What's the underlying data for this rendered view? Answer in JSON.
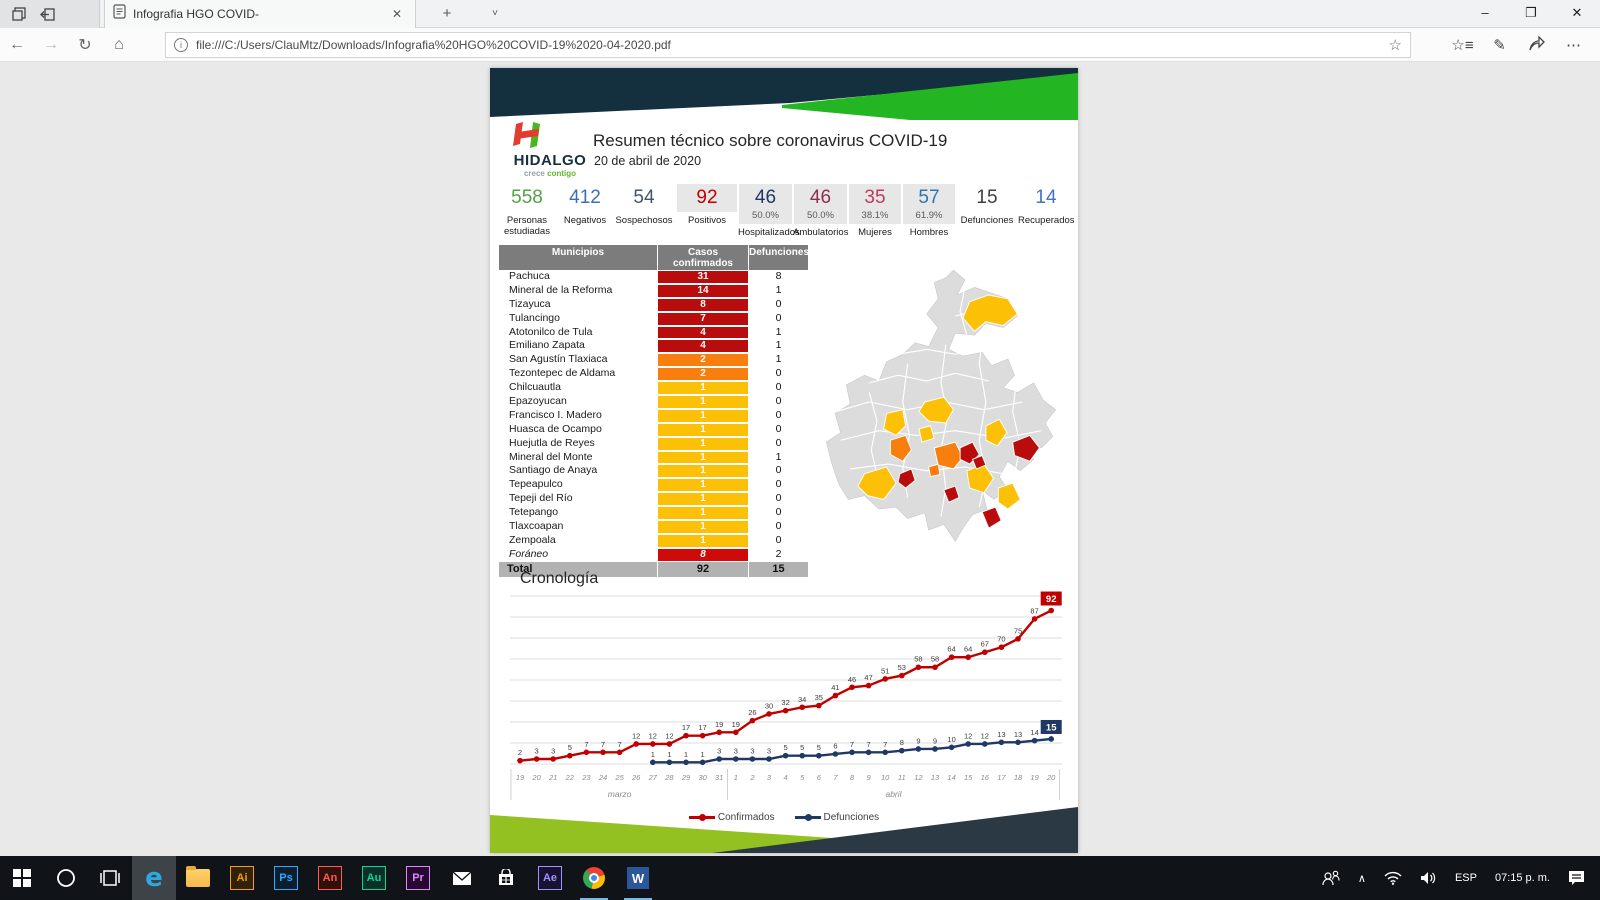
{
  "browser": {
    "tab_title": "Infografia HGO COVID-",
    "url": "file:///C:/Users/ClauMtz/Downloads/Infografia%20HGO%20COVID-19%2020-04-2020.pdf"
  },
  "header": {
    "logo_word": "HIDALGO",
    "logo_tag_1": "crece",
    "logo_tag_2": "contigo",
    "title": "Resumen técnico sobre coronavirus COVID-19",
    "date": "20 de abril de 2020"
  },
  "stats": [
    {
      "value": "558",
      "sub": "",
      "label": "Personas estudiadas",
      "color": "#53a045",
      "boxed": false
    },
    {
      "value": "412",
      "sub": "",
      "label": "Negativos",
      "color": "#3b6fb5",
      "boxed": false
    },
    {
      "value": "54",
      "sub": "",
      "label": "Sospechosos",
      "color": "#44546a",
      "boxed": false
    },
    {
      "value": "92",
      "sub": "",
      "label": "Positivos",
      "color": "#c00000",
      "boxed": true
    },
    {
      "value": "46",
      "sub": "50.0%",
      "label": "Hospitalizados",
      "color": "#1f3864",
      "boxed": true
    },
    {
      "value": "46",
      "sub": "50.0%",
      "label": "Ambulatorios",
      "color": "#8e2f4f",
      "boxed": true
    },
    {
      "value": "35",
      "sub": "38.1%",
      "label": "Mujeres",
      "color": "#bf3a5c",
      "boxed": true
    },
    {
      "value": "57",
      "sub": "61.9%",
      "label": "Hombres",
      "color": "#2e74b5",
      "boxed": true
    },
    {
      "value": "15",
      "sub": "",
      "label": "Defunciones",
      "color": "#404040",
      "boxed": false
    },
    {
      "value": "14",
      "sub": "",
      "label": "Recuperados",
      "color": "#4472c4",
      "boxed": false
    }
  ],
  "table": {
    "headers": [
      "Municipios",
      "Casos confirmados",
      "Defunciones"
    ],
    "rows": [
      {
        "name": "Pachuca",
        "cases": "31",
        "deaths": "8",
        "level": "darkred",
        "italic": false
      },
      {
        "name": "Mineral de la Reforma",
        "cases": "14",
        "deaths": "1",
        "level": "darkred",
        "italic": false
      },
      {
        "name": "Tizayuca",
        "cases": "8",
        "deaths": "0",
        "level": "darkred",
        "italic": false
      },
      {
        "name": "Tulancingo",
        "cases": "7",
        "deaths": "0",
        "level": "darkred",
        "italic": false
      },
      {
        "name": "Atotonilco de Tula",
        "cases": "4",
        "deaths": "1",
        "level": "darkred",
        "italic": false
      },
      {
        "name": "Emiliano Zapata",
        "cases": "4",
        "deaths": "1",
        "level": "darkred",
        "italic": false
      },
      {
        "name": "San Agustín Tlaxiaca",
        "cases": "2",
        "deaths": "1",
        "level": "orange",
        "italic": false
      },
      {
        "name": "Tezontepec de Aldama",
        "cases": "2",
        "deaths": "0",
        "level": "orange",
        "italic": false
      },
      {
        "name": "Chilcuautla",
        "cases": "1",
        "deaths": "0",
        "level": "yellow",
        "italic": false
      },
      {
        "name": "Epazoyucan",
        "cases": "1",
        "deaths": "0",
        "level": "yellow",
        "italic": false
      },
      {
        "name": "Francisco I. Madero",
        "cases": "1",
        "deaths": "0",
        "level": "yellow",
        "italic": false
      },
      {
        "name": "Huasca de Ocampo",
        "cases": "1",
        "deaths": "0",
        "level": "yellow",
        "italic": false
      },
      {
        "name": "Huejutla de Reyes",
        "cases": "1",
        "deaths": "0",
        "level": "yellow",
        "italic": false
      },
      {
        "name": "Mineral del Monte",
        "cases": "1",
        "deaths": "1",
        "level": "yellow",
        "italic": false
      },
      {
        "name": "Santiago de Anaya",
        "cases": "1",
        "deaths": "0",
        "level": "yellow",
        "italic": false
      },
      {
        "name": "Tepeapulco",
        "cases": "1",
        "deaths": "0",
        "level": "yellow",
        "italic": false
      },
      {
        "name": "Tepeji del Río",
        "cases": "1",
        "deaths": "0",
        "level": "yellow",
        "italic": false
      },
      {
        "name": "Tetepango",
        "cases": "1",
        "deaths": "0",
        "level": "yellow",
        "italic": false
      },
      {
        "name": "Tlaxcoapan",
        "cases": "1",
        "deaths": "0",
        "level": "yellow",
        "italic": false
      },
      {
        "name": "Zempoala",
        "cases": "1",
        "deaths": "0",
        "level": "yellow",
        "italic": false
      },
      {
        "name": "Foráneo",
        "cases": "8",
        "deaths": "2",
        "level": "foraneo",
        "italic": true
      }
    ],
    "total_label": "Total",
    "total_cases": "92",
    "total_deaths": "15",
    "level_colors": {
      "darkred": "#b90c0c",
      "orange": "#f87e0e",
      "yellow": "#fcc006",
      "foraneo": "#cf0a0a"
    }
  },
  "map": {
    "palette": {
      "none": "#dcdcdc",
      "low": "#fcc006",
      "mid": "#f87e0e",
      "high": "#b90c0c"
    }
  },
  "chart_data": {
    "type": "line",
    "title": "Cronología",
    "categories": [
      "19",
      "20",
      "21",
      "22",
      "23",
      "24",
      "25",
      "26",
      "27",
      "28",
      "29",
      "30",
      "31",
      "1",
      "2",
      "3",
      "4",
      "5",
      "6",
      "7",
      "8",
      "9",
      "10",
      "11",
      "12",
      "13",
      "14",
      "15",
      "16",
      "17",
      "18",
      "19",
      "20"
    ],
    "month_groups": [
      {
        "label": "marzo",
        "count": 13
      },
      {
        "label": "abril",
        "count": 20
      }
    ],
    "series": [
      {
        "name": "Confirmados",
        "color": "#c00000",
        "start_index": 0,
        "values": [
          2,
          3,
          3,
          5,
          7,
          7,
          7,
          12,
          12,
          12,
          17,
          17,
          19,
          19,
          26,
          30,
          32,
          34,
          35,
          41,
          46,
          47,
          51,
          53,
          58,
          58,
          64,
          64,
          67,
          70,
          75,
          87,
          92
        ]
      },
      {
        "name": "Defunciones",
        "color": "#1f3864",
        "start_index": 8,
        "values": [
          1,
          1,
          1,
          1,
          3,
          3,
          3,
          3,
          5,
          5,
          5,
          6,
          7,
          7,
          7,
          8,
          9,
          9,
          10,
          12,
          12,
          13,
          13,
          14,
          15
        ]
      }
    ],
    "ylim": [
      0,
      100
    ],
    "grid": true,
    "legend_position": "bottom"
  },
  "tray": {
    "lang": "ESP",
    "time": "07:15 p. m."
  },
  "taskbar_items": [
    {
      "name": "start",
      "type": "start"
    },
    {
      "name": "cortana",
      "type": "cortana"
    },
    {
      "name": "task-view",
      "type": "taskview"
    },
    {
      "name": "edge",
      "type": "edge",
      "active": true,
      "running": false
    },
    {
      "name": "file-explorer",
      "type": "folder"
    },
    {
      "name": "illustrator",
      "type": "adobe",
      "label": "Ai",
      "color": "#ff9a00",
      "bg": "#2f2209"
    },
    {
      "name": "photoshop",
      "type": "adobe",
      "label": "Ps",
      "color": "#31a8ff",
      "bg": "#0a1e30"
    },
    {
      "name": "animate",
      "type": "adobe",
      "label": "An",
      "color": "#ff5a54",
      "bg": "#30100a"
    },
    {
      "name": "audition",
      "type": "adobe",
      "label": "Au",
      "color": "#00d8a0",
      "bg": "#0a2f26"
    },
    {
      "name": "premiere",
      "type": "adobe",
      "label": "Pr",
      "color": "#d88bff",
      "bg": "#27092f"
    },
    {
      "name": "mail",
      "type": "mail"
    },
    {
      "name": "store",
      "type": "store"
    },
    {
      "name": "after-effects",
      "type": "adobe",
      "label": "Ae",
      "color": "#9f93ff",
      "bg": "#16122f"
    },
    {
      "name": "chrome",
      "type": "chrome",
      "running": true
    },
    {
      "name": "word",
      "type": "word",
      "running": true
    }
  ]
}
